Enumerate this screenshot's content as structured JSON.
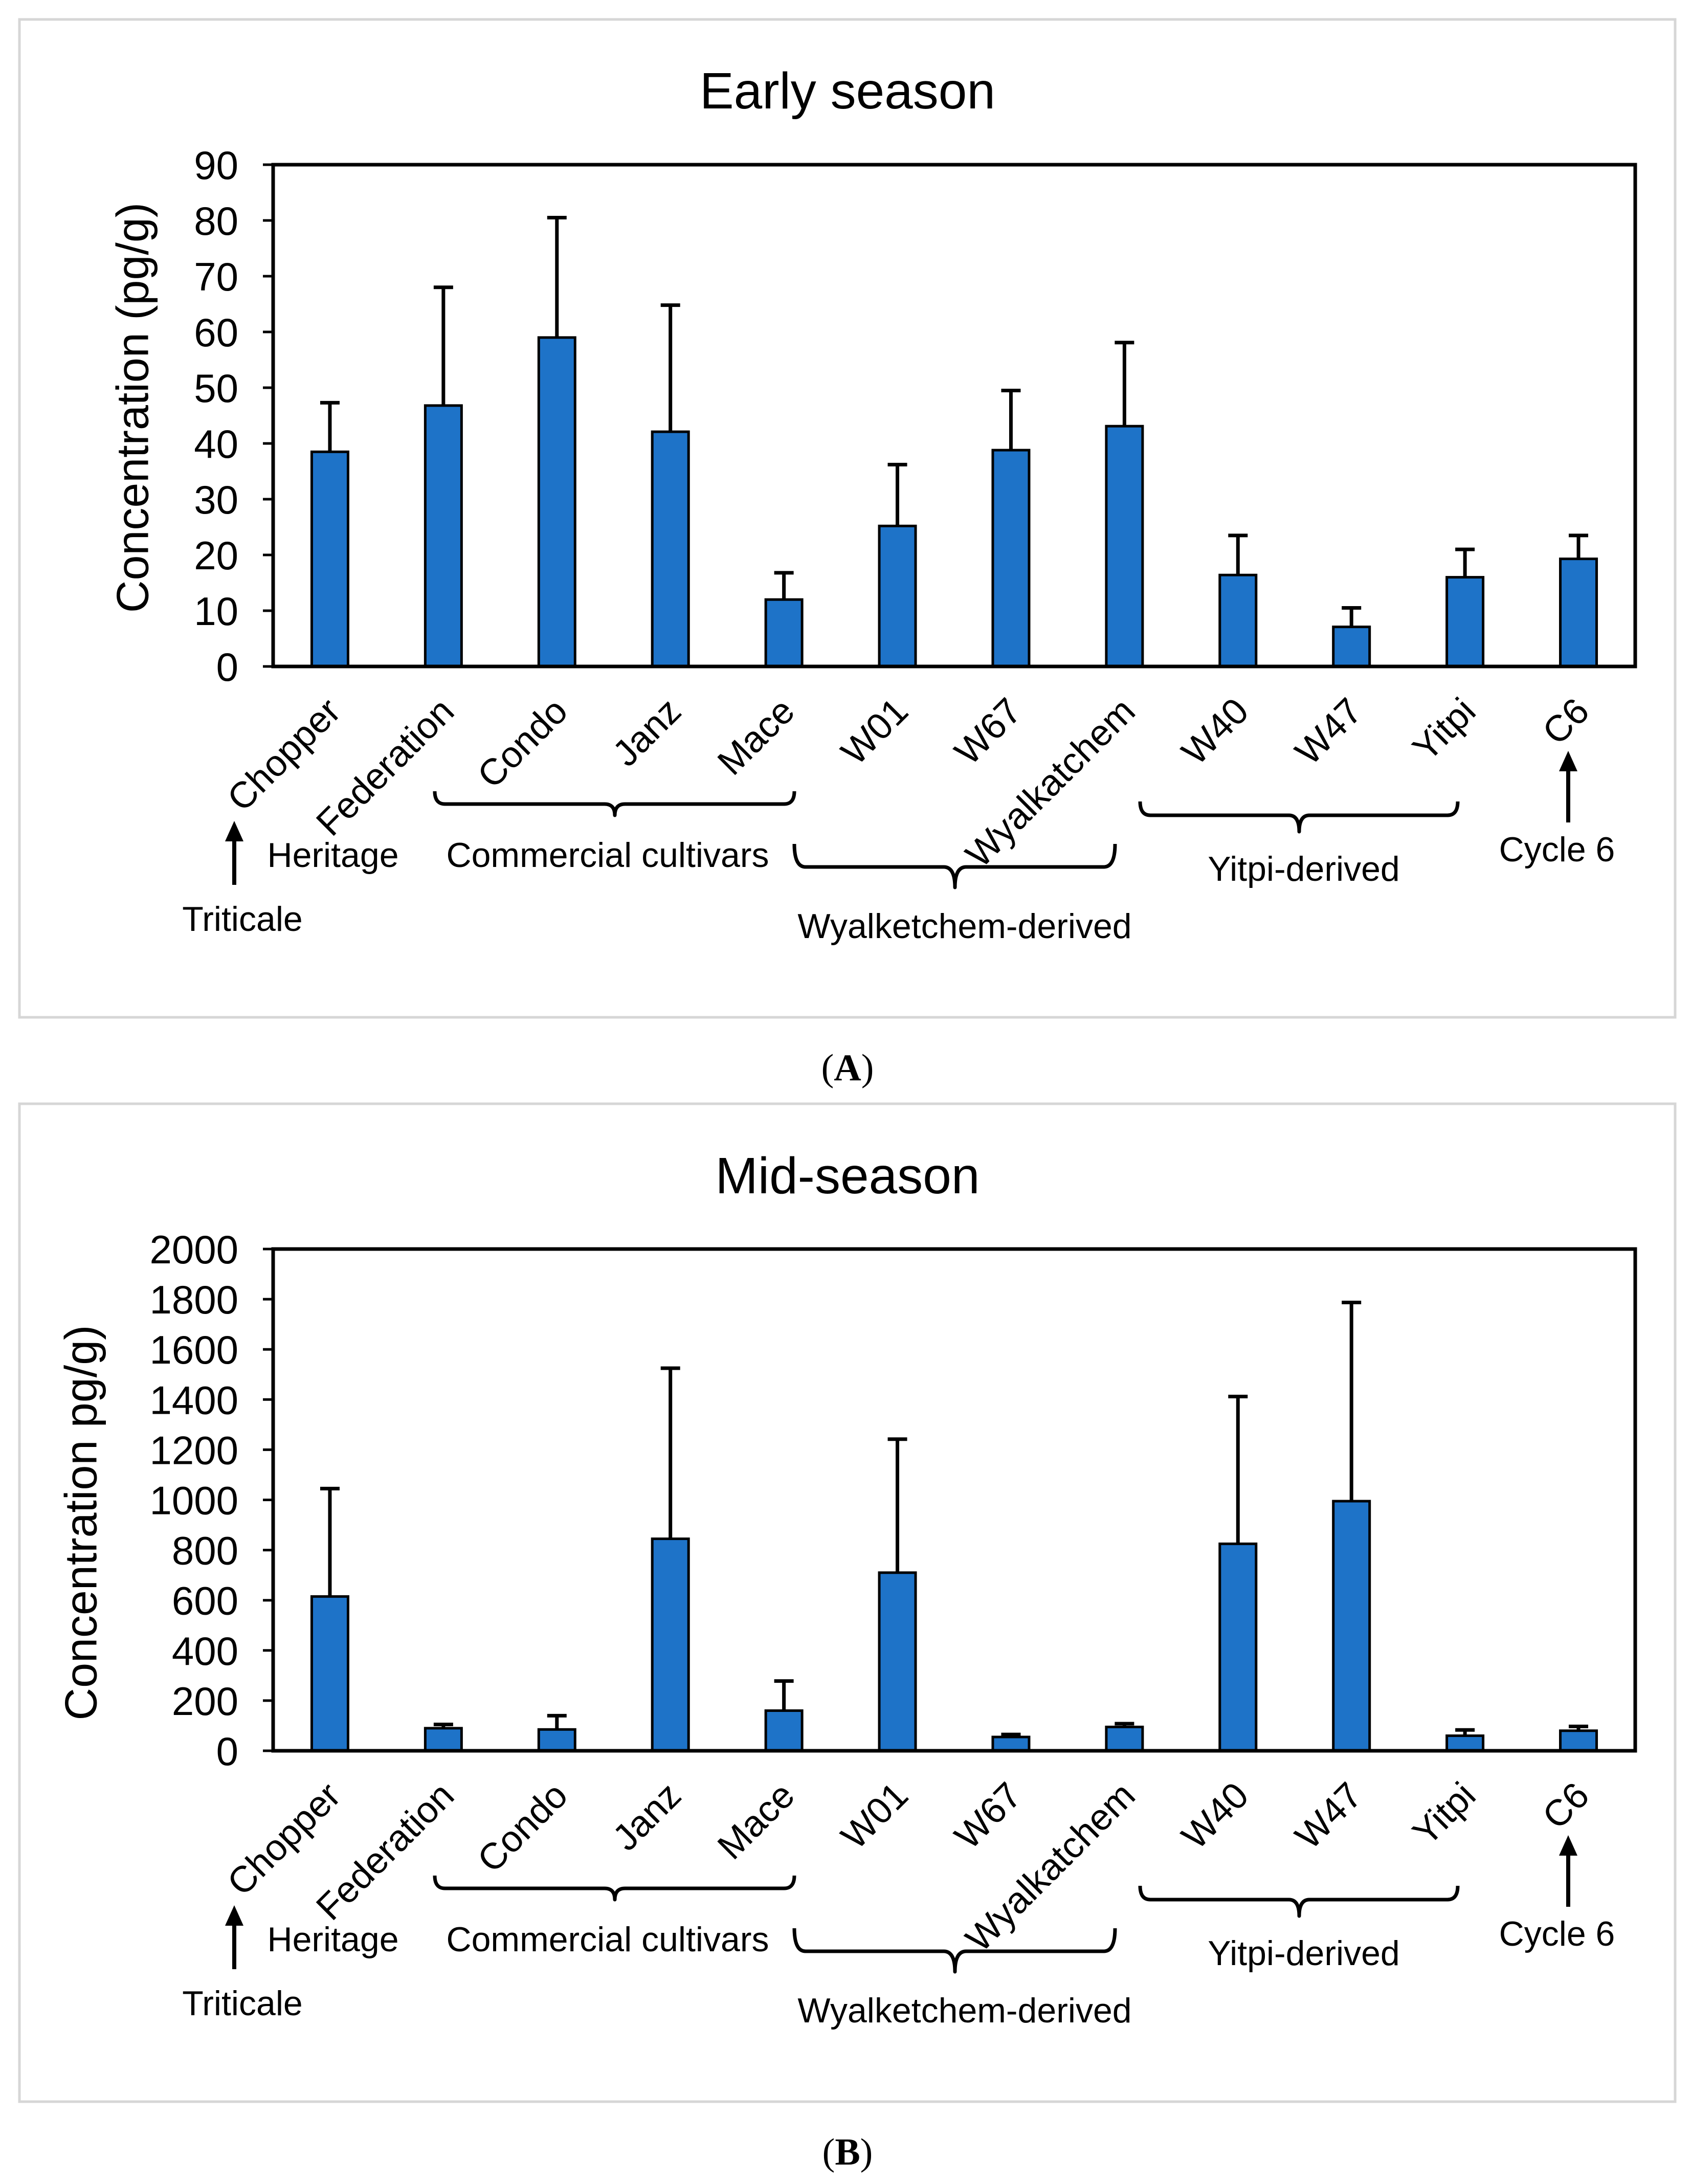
{
  "figure": {
    "panels": [
      {
        "caption": {
          "open": "(",
          "letter": "A",
          "close": ")"
        },
        "groups": {
          "triticale": "Triticale",
          "heritage": "Heritage",
          "commercial": "Commercial cultivars",
          "wyalketchem": "Wyalketchem-derived",
          "yitpi": "Yitpi-derived",
          "cycle6": "Cycle 6"
        }
      },
      {
        "caption": {
          "open": "(",
          "letter": "B",
          "close": ")"
        },
        "groups": {
          "triticale": "Triticale",
          "heritage": "Heritage",
          "commercial": "Commercial cultivars",
          "wyalketchem": "Wyalketchem-derived",
          "yitpi": "Yitpi-derived",
          "cycle6": "Cycle 6"
        }
      }
    ]
  },
  "colors": {
    "bar_fill": "#1e73c8",
    "bar_stroke": "#000000",
    "panel_border": "#d6d6d6"
  },
  "chart_data": [
    {
      "type": "bar",
      "title": "Early season",
      "xlabel": "",
      "ylabel": "Concentration (pg/g)",
      "categories": [
        "Chopper",
        "Federation",
        "Condo",
        "Janz",
        "Mace",
        "W01",
        "W67",
        "Wyalkatchem",
        "W40",
        "W47",
        "Yitpi",
        "C6"
      ],
      "values": [
        38.5,
        46.8,
        59.0,
        42.1,
        12.0,
        25.2,
        38.8,
        43.1,
        16.4,
        7.1,
        16.0,
        19.3
      ],
      "error_upper": [
        8.8,
        21.2,
        21.5,
        22.7,
        4.8,
        11.0,
        10.7,
        15.0,
        7.1,
        3.4,
        5.0,
        4.2
      ],
      "ylim": [
        0,
        90
      ],
      "yticks": [
        0,
        10,
        20,
        30,
        40,
        50,
        60,
        70,
        80,
        90
      ],
      "grid": false,
      "legend": "none"
    },
    {
      "type": "bar",
      "title": "Mid-season",
      "xlabel": "",
      "ylabel": "Concentration pg/g)",
      "categories": [
        "Chopper",
        "Federation",
        "Condo",
        "Janz",
        "Mace",
        "W01",
        "W67",
        "Wyalkatchem",
        "W40",
        "W47",
        "Yitpi",
        "C6"
      ],
      "values": [
        615,
        90,
        85,
        845,
        160,
        710,
        55,
        95,
        825,
        995,
        60,
        80
      ],
      "error_upper": [
        430,
        15,
        55,
        680,
        118,
        532,
        10,
        13,
        587,
        792,
        23,
        17
      ],
      "ylim": [
        0,
        2000
      ],
      "yticks": [
        0,
        200,
        400,
        600,
        800,
        1000,
        1200,
        1400,
        1600,
        1800,
        2000
      ],
      "grid": false,
      "legend": "none"
    }
  ]
}
